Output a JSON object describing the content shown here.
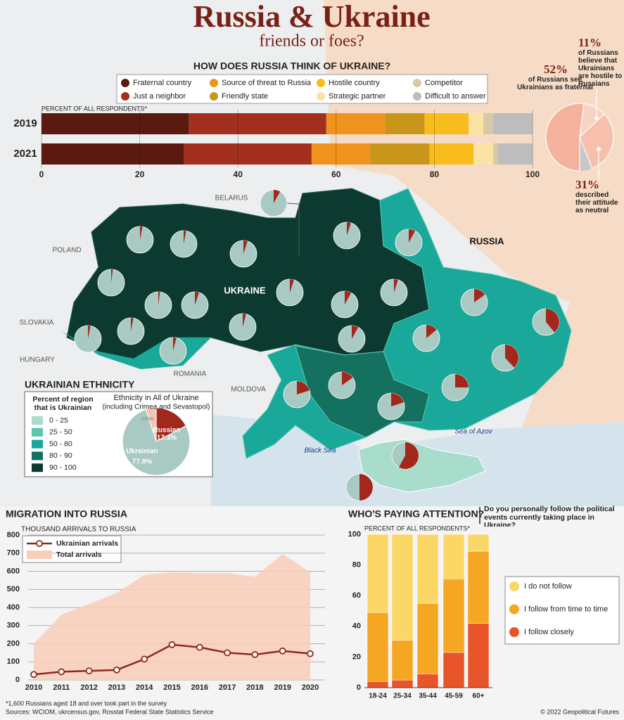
{
  "header": {
    "title": "Russia & Ukraine",
    "subtitle": "friends or foes?"
  },
  "chart_data": [
    {
      "type": "bar",
      "orientation": "horizontal",
      "stacked": true,
      "title": "HOW DOES RUSSIA THINK OF UKRAINE?",
      "xlabel": "PERCENT OF ALL RESPONDENTS*",
      "categories": [
        "2019",
        "2021"
      ],
      "series": [
        {
          "name": "Fraternal country",
          "color": "#5a1a10",
          "values": [
            30,
            29
          ]
        },
        {
          "name": "Just a neighbor",
          "color": "#a3301f",
          "values": [
            28,
            26
          ]
        },
        {
          "name": "Source of threat to Russia",
          "color": "#f0921e",
          "values": [
            12,
            12
          ]
        },
        {
          "name": "Friendly state",
          "color": "#c9961c",
          "values": [
            8,
            12
          ]
        },
        {
          "name": "Hostile country",
          "color": "#f8bd1c",
          "values": [
            9,
            9
          ]
        },
        {
          "name": "Strategic partner",
          "color": "#fce3a3",
          "values": [
            3,
            4
          ]
        },
        {
          "name": "Competitor",
          "color": "#d6c9a8",
          "values": [
            2,
            1
          ]
        },
        {
          "name": "Difficult to answer",
          "color": "#bdbdbd",
          "values": [
            8,
            7
          ]
        }
      ],
      "xlim": [
        0,
        100
      ],
      "xticks": [
        0,
        20,
        40,
        60,
        80,
        100
      ],
      "grid": true
    },
    {
      "type": "pie",
      "values": [
        52,
        11,
        31
      ],
      "value_labels": [
        "52%",
        "11%",
        "31%"
      ],
      "annotations": [
        "of Russians see Ukrainians as fraternal",
        "of Russians believe that Ukrainians are hostile to Russians",
        "described their attitude as neutral"
      ],
      "colors": [
        "#f4b29c",
        "#f9d2c4",
        "#f6c0ad"
      ]
    },
    {
      "type": "pie-map",
      "title": "UKRAINIAN ETHNICITY",
      "legend_title": "Percent of region that is Ukrainian",
      "legend": [
        {
          "label": "0 - 25",
          "color": "#a8dccb"
        },
        {
          "label": "25 - 50",
          "color": "#5cc4b0"
        },
        {
          "label": "50 - 80",
          "color": "#1aa89a"
        },
        {
          "label": "80 - 90",
          "color": "#14705f"
        },
        {
          "label": "90 - 100",
          "color": "#0c3a30"
        }
      ],
      "values": [
        3,
        3,
        5,
        5,
        8,
        8,
        2,
        2,
        5,
        5,
        8,
        5,
        4,
        3,
        3,
        4,
        8,
        14,
        15,
        39,
        38,
        25,
        15,
        20,
        20,
        58,
        50
      ],
      "color": "#a3281c"
    },
    {
      "type": "pie",
      "title": "Ethnicity in All of Ukraine",
      "subtitle": "(including Crimea and Sevastopol)",
      "categories": [
        "Russian",
        "Ukrainian"
      ],
      "values": [
        17.3,
        77.8
      ],
      "value_labels": [
        "17.3%",
        "77.8%"
      ],
      "colors": [
        "#a3281c",
        "#a9c9c3"
      ],
      "other_label": "other"
    },
    {
      "type": "line",
      "title": "MIGRATION INTO RUSSIA",
      "ylabel": "THOUSAND ARRIVALS TO RUSSIA",
      "x": [
        2010,
        2011,
        2012,
        2013,
        2014,
        2015,
        2016,
        2017,
        2018,
        2019,
        2020
      ],
      "series": [
        {
          "name": "Ukrainian arrivals",
          "color": "#8b2a1c",
          "values": [
            30,
            45,
            50,
            55,
            115,
            195,
            180,
            150,
            140,
            160,
            145
          ]
        },
        {
          "name": "Total arrivals",
          "color": "#f9cdb9",
          "style": "area",
          "values": [
            200,
            360,
            420,
            480,
            580,
            595,
            590,
            590,
            570,
            695,
            595
          ]
        }
      ],
      "xlim": [
        2010,
        2020
      ],
      "ylim": [
        0,
        800
      ],
      "yticks": [
        0,
        100,
        200,
        300,
        400,
        500,
        600,
        700,
        800
      ],
      "grid": true
    },
    {
      "type": "bar",
      "orientation": "vertical",
      "stacked": true,
      "title": "WHO'S PAYING ATTENTION?",
      "subtitle": "Do you personally follow the political events currently taking place in Ukraine?",
      "ylabel": "PERCENT OF ALL RESPONDENTS*",
      "categories": [
        "18-24",
        "25-34",
        "35-44",
        "45-59",
        "60+"
      ],
      "series": [
        {
          "name": "I follow closely",
          "color": "#e8552a",
          "values": [
            4,
            5,
            9,
            23,
            42
          ]
        },
        {
          "name": "I follow from time to time",
          "color": "#f5a623",
          "values": [
            45,
            26,
            46,
            48,
            47
          ]
        },
        {
          "name": "I do not follow",
          "color": "#fbd766",
          "values": [
            51,
            69,
            45,
            29,
            11
          ]
        }
      ],
      "ylim": [
        0,
        100
      ],
      "yticks": [
        0,
        20,
        40,
        60,
        80,
        100
      ],
      "grid": false
    }
  ],
  "map": {
    "labels": [
      "BELARUS",
      "POLAND",
      "RUSSIA",
      "UKRAINE",
      "SLOVAKIA",
      "HUNGARY",
      "ROMANIA",
      "MOLDOVA",
      "Black Sea",
      "Sea of Azov"
    ]
  },
  "footer": {
    "note": "*1,600 Russians aged 18 and over took part in the survey",
    "sources": "Sources: WCIOM, ukrcensus.gov, Rosstat Federal State Statistics Service",
    "credit": "© 2022 Geopolitical Futures"
  }
}
